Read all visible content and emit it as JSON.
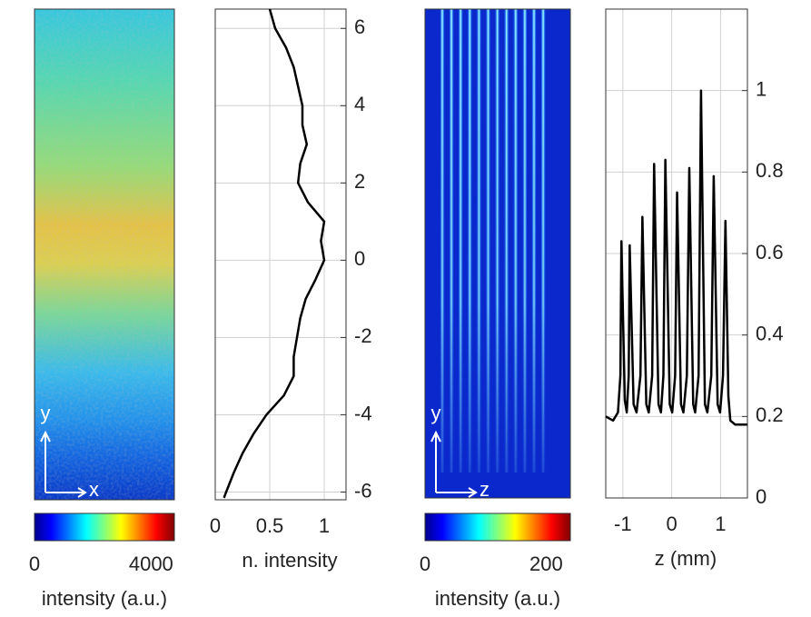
{
  "chart_data": [
    {
      "type": "image",
      "colorbar": {
        "clim": [
          0,
          4800
        ],
        "ticks": [
          0,
          4000
        ],
        "label": "intensity (a.u.)"
      },
      "axis_labels": {
        "x": "x",
        "y": "y"
      }
    },
    {
      "type": "line",
      "orientation": "horizontal",
      "color": "#000000",
      "grid": true,
      "y": [
        6.5,
        6,
        5.5,
        5,
        4.5,
        4,
        3.5,
        3,
        2.5,
        2,
        1.5,
        1,
        0.5,
        0,
        -0.5,
        -1,
        -1.5,
        -2,
        -2.5,
        -3,
        -3.5,
        -4,
        -4.5,
        -5,
        -5.5,
        -6,
        -6.15
      ],
      "values": [
        0.5,
        0.55,
        0.65,
        0.72,
        0.76,
        0.8,
        0.8,
        0.84,
        0.78,
        0.76,
        0.85,
        1.0,
        0.97,
        1.0,
        0.92,
        0.83,
        0.78,
        0.75,
        0.72,
        0.72,
        0.63,
        0.47,
        0.35,
        0.25,
        0.17,
        0.1,
        0.08
      ],
      "xlim": [
        0,
        1.2
      ],
      "xticks": [
        0,
        0.5,
        1
      ],
      "ylim": [
        -6.2,
        6.5
      ],
      "yticks": [
        -6,
        -4,
        -2,
        0,
        2,
        4,
        6
      ],
      "xlabel": "n. intensity"
    },
    {
      "type": "image",
      "colorbar": {
        "clim": [
          0,
          240
        ],
        "ticks": [
          0,
          200
        ],
        "label": "intensity (a.u.)"
      },
      "axis_labels": {
        "x": "z",
        "y": "y"
      }
    },
    {
      "type": "line",
      "orientation": "vertical",
      "color": "#000000",
      "grid": true,
      "x": [
        -1.35,
        -1.2,
        -1.1,
        -1.05,
        -1.03,
        -0.96,
        -0.92,
        -0.88,
        -0.86,
        -0.78,
        -0.72,
        -0.64,
        -0.6,
        -0.52,
        -0.47,
        -0.4,
        -0.36,
        -0.27,
        -0.22,
        -0.17,
        -0.13,
        -0.04,
        0.01,
        0.07,
        0.11,
        0.19,
        0.24,
        0.31,
        0.36,
        0.44,
        0.48,
        0.55,
        0.6,
        0.68,
        0.73,
        0.81,
        0.86,
        0.94,
        0.99,
        1.05,
        1.1,
        1.16,
        1.2,
        1.3,
        1.45,
        1.55
      ],
      "values": [
        0.2,
        0.19,
        0.21,
        0.3,
        0.63,
        0.24,
        0.21,
        0.3,
        0.62,
        0.23,
        0.21,
        0.3,
        0.69,
        0.23,
        0.21,
        0.3,
        0.82,
        0.23,
        0.21,
        0.3,
        0.83,
        0.23,
        0.21,
        0.3,
        0.75,
        0.23,
        0.21,
        0.3,
        0.81,
        0.23,
        0.21,
        0.3,
        1.0,
        0.23,
        0.21,
        0.3,
        0.79,
        0.23,
        0.21,
        0.3,
        0.68,
        0.25,
        0.19,
        0.18,
        0.18,
        0.18
      ],
      "xlim": [
        -1.35,
        1.55
      ],
      "xticks": [
        -1,
        0,
        1
      ],
      "ylim": [
        0,
        1.2
      ],
      "yticks": [
        0,
        0.2,
        0.4,
        0.6,
        0.8,
        1
      ],
      "xlabel": "z (mm)"
    }
  ]
}
